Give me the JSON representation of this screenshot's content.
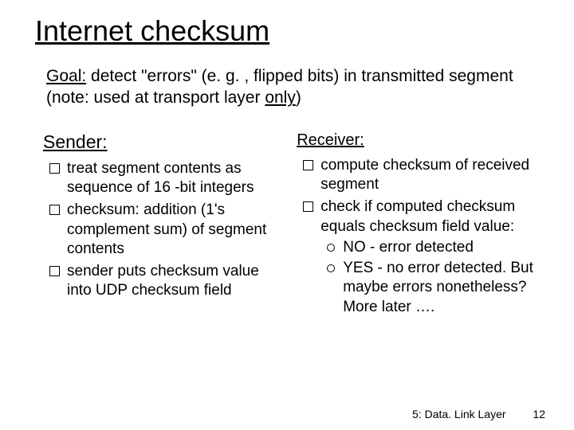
{
  "title": "Internet checksum",
  "goal": {
    "label": "Goal:",
    "before_only": " detect \"errors\" (e. g. , flipped bits) in transmitted segment (note: used at transport layer ",
    "only": "only",
    "after_only": ")"
  },
  "sender": {
    "heading": "Sender:",
    "items": [
      "treat segment contents as sequence of 16 -bit integers",
      "checksum: addition (1's complement sum) of segment contents",
      "sender puts checksum value into UDP checksum field"
    ]
  },
  "receiver": {
    "heading": "Receiver:",
    "items": [
      {
        "text": "compute checksum of received segment"
      },
      {
        "text": "check if computed checksum equals checksum field value:",
        "sub": [
          "NO - error detected",
          "YES - no error detected. But maybe errors nonetheless? More later …."
        ]
      }
    ]
  },
  "footer": {
    "chapter": "5: Data. Link Layer",
    "page": "12"
  },
  "style": {
    "background": "#ffffff",
    "text_color": "#000000",
    "title_fontsize": 36,
    "goal_fontsize": 21,
    "col_heading_fontsize": 23,
    "body_fontsize": 19,
    "footer_fontsize": 14,
    "font_family": "Comic Sans MS",
    "bullet_lvl1": {
      "shape": "square-outline",
      "size": 11,
      "border": "#000000"
    },
    "bullet_lvl2": {
      "shape": "circle-outline",
      "size": 8,
      "border": "#000000"
    }
  }
}
